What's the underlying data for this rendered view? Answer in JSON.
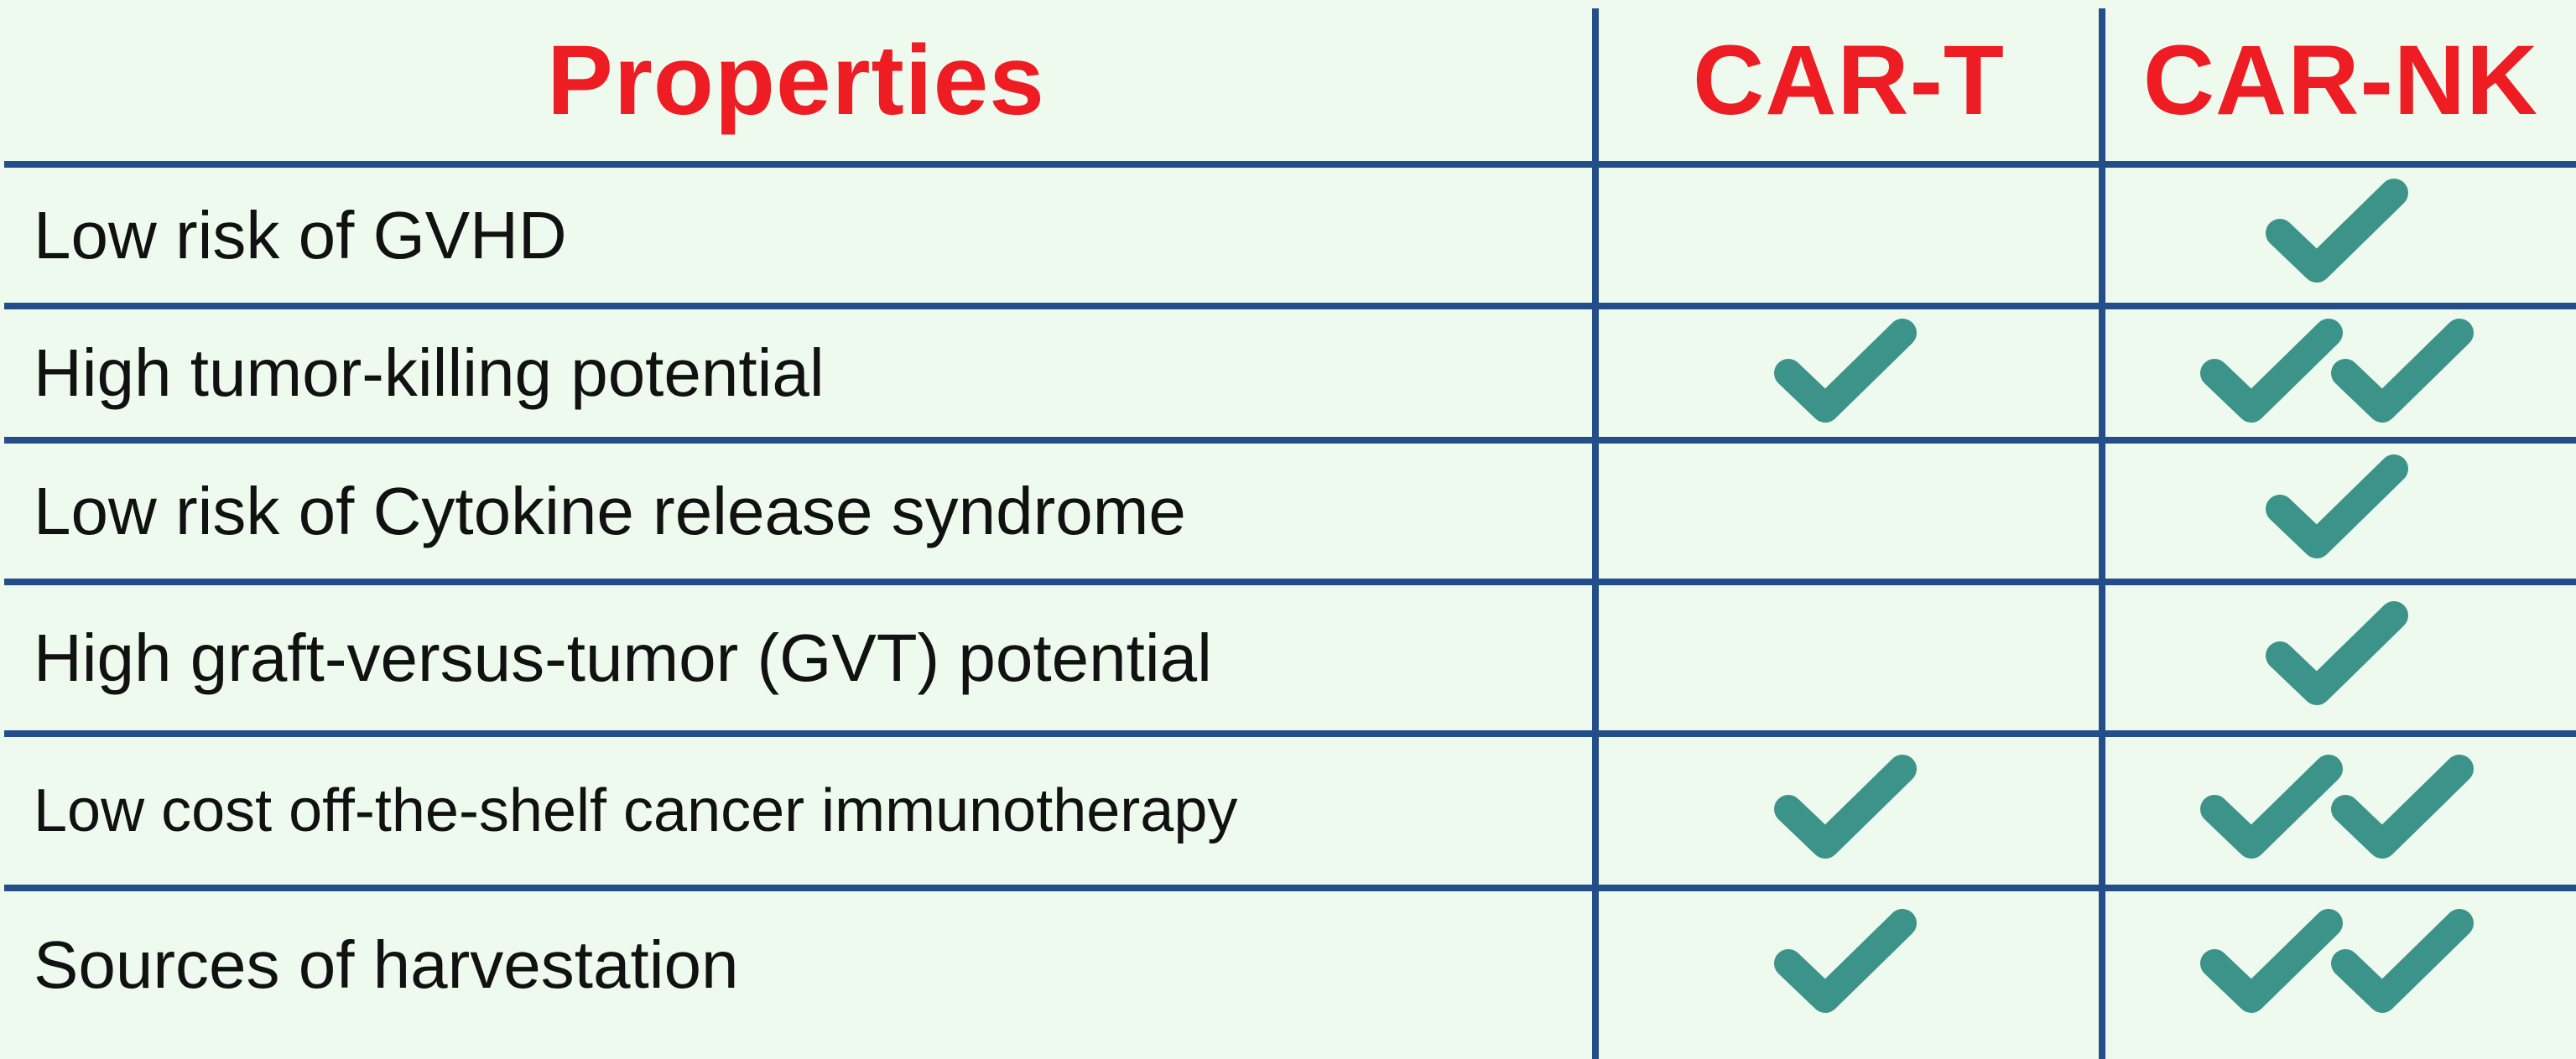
{
  "header": {
    "properties": "Properties",
    "car_t": "CAR-T",
    "car_nk": "CAR-NK"
  },
  "colors": {
    "background": "#effaef",
    "grid_lines": "#234e8a",
    "header_text": "#ee1d23",
    "checkmark": "#3b938a"
  },
  "rows": [
    {
      "label": "Low risk of GVHD",
      "car_t_checks": 0,
      "car_nk_checks": 1
    },
    {
      "label": "High tumor-killing potential",
      "car_t_checks": 1,
      "car_nk_checks": 2
    },
    {
      "label": "Low risk of Cytokine release syndrome",
      "car_t_checks": 0,
      "car_nk_checks": 1
    },
    {
      "label": "High graft-versus-tumor (GVT) potential",
      "car_t_checks": 0,
      "car_nk_checks": 1
    },
    {
      "label": "Low cost off-the-shelf cancer immunotherapy",
      "car_t_checks": 1,
      "car_nk_checks": 2
    },
    {
      "label": "Sources of harvestation",
      "car_t_checks": 1,
      "car_nk_checks": 2
    }
  ],
  "icons": {
    "check": "checkmark-icon"
  }
}
